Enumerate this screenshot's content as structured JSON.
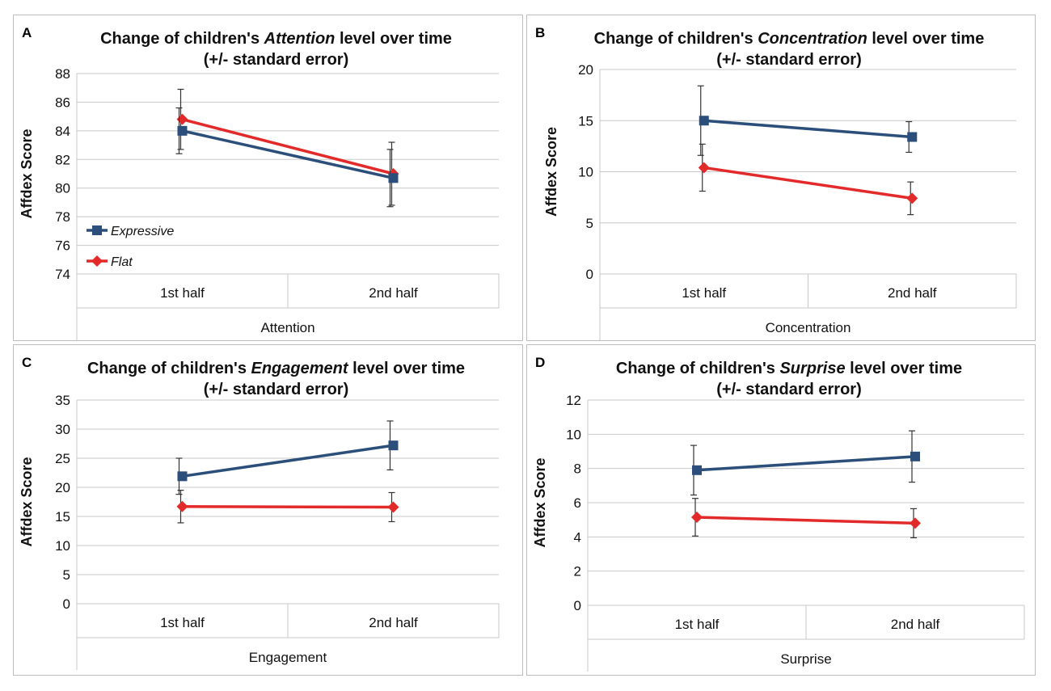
{
  "colors": {
    "expressive": "#2b4f7a",
    "flat": "#e32a2a",
    "grid": "#c8c8c8",
    "errorbar": "#333333"
  },
  "chart_data": [
    {
      "letter": "A",
      "type": "line",
      "title_pre": "Change of children's ",
      "title_em": "Attention",
      "title_post": " level over time",
      "subtitle": "(+/- standard error)",
      "categories": [
        "1st half",
        "2nd half"
      ],
      "xlabel": "Attention",
      "ylabel": "Affdex Score",
      "ylim": [
        74,
        88
      ],
      "yticks": [
        74,
        76,
        78,
        80,
        82,
        84,
        86,
        88
      ],
      "legend": {
        "show": true,
        "placement": "lower-left",
        "items": [
          "Expressive",
          "Flat"
        ]
      },
      "series": [
        {
          "name": "Expressive",
          "values": [
            84.0,
            80.7
          ],
          "err": [
            1.6,
            2.0
          ]
        },
        {
          "name": "Flat",
          "values": [
            84.8,
            81.0
          ],
          "err": [
            2.1,
            2.2
          ]
        }
      ]
    },
    {
      "letter": "B",
      "type": "line",
      "title_pre": "Change of children's ",
      "title_em": "Concentration",
      "title_post": " level over time",
      "subtitle": "(+/-  standard error)",
      "categories": [
        "1st half",
        "2nd half"
      ],
      "xlabel": "Concentration",
      "ylabel": "Affdex Score",
      "ylim": [
        0,
        20
      ],
      "yticks": [
        0,
        5,
        10,
        15,
        20
      ],
      "legend": {
        "show": false,
        "placement": "none",
        "items": []
      },
      "series": [
        {
          "name": "Expressive",
          "values": [
            15.0,
            13.4
          ],
          "err": [
            3.4,
            1.5
          ]
        },
        {
          "name": "Flat",
          "values": [
            10.4,
            7.4
          ],
          "err": [
            2.3,
            1.6
          ]
        }
      ]
    },
    {
      "letter": "C",
      "type": "line",
      "title_pre": "Change of children's ",
      "title_em": "Engagement",
      "title_post": " level over time",
      "subtitle": "(+/- standard error)",
      "categories": [
        "1st half",
        "2nd half"
      ],
      "xlabel": "Engagement",
      "ylabel": "Affdex Score",
      "ylim": [
        0,
        35
      ],
      "yticks": [
        0,
        5,
        10,
        15,
        20,
        25,
        30,
        35
      ],
      "legend": {
        "show": false,
        "placement": "none",
        "items": []
      },
      "series": [
        {
          "name": "Expressive",
          "values": [
            21.9,
            27.2
          ],
          "err": [
            3.1,
            4.2
          ]
        },
        {
          "name": "Flat",
          "values": [
            16.7,
            16.6
          ],
          "err": [
            2.8,
            2.5
          ]
        }
      ]
    },
    {
      "letter": "D",
      "type": "line",
      "title_pre": "Change of children's ",
      "title_em": "Surprise",
      "title_post": " level over time",
      "subtitle": "(+/- standard error)",
      "categories": [
        "1st half",
        "2nd half"
      ],
      "xlabel": "Surprise",
      "ylabel": "Affdex Score",
      "ylim": [
        0,
        12
      ],
      "yticks": [
        0,
        2,
        4,
        6,
        8,
        10,
        12
      ],
      "legend": {
        "show": false,
        "placement": "none",
        "items": []
      },
      "series": [
        {
          "name": "Expressive",
          "values": [
            7.9,
            8.7
          ],
          "err": [
            1.45,
            1.5
          ]
        },
        {
          "name": "Flat",
          "values": [
            5.15,
            4.8
          ],
          "err": [
            1.1,
            0.85
          ]
        }
      ]
    }
  ]
}
